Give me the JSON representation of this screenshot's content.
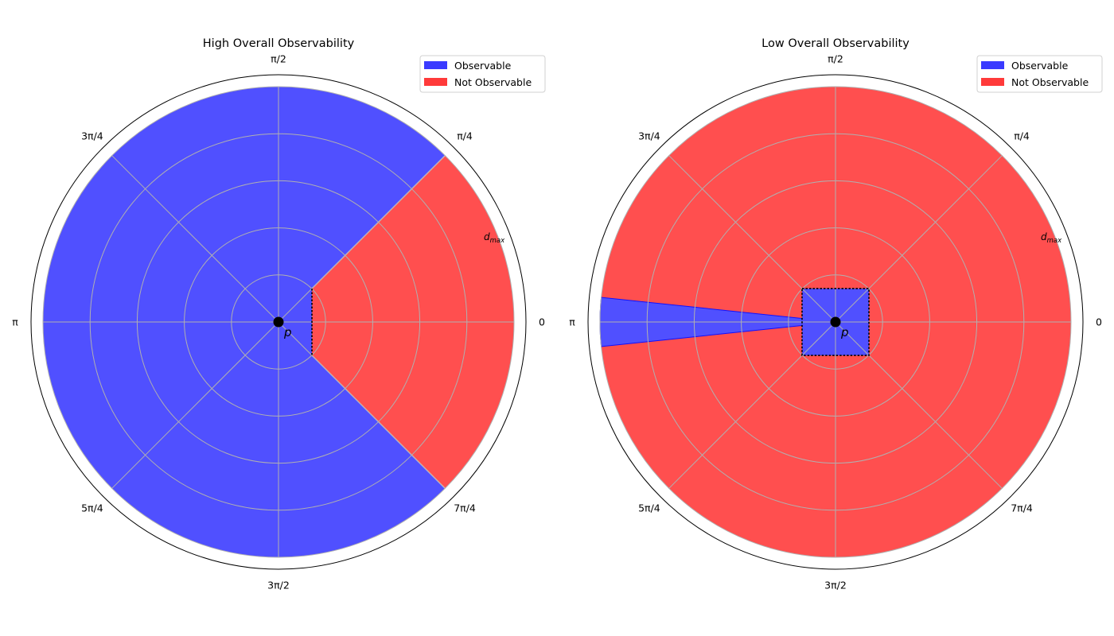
{
  "chart_data": [
    {
      "type": "polar",
      "title": "High Overall Observability",
      "angle_ticks": [
        "0",
        "π/4",
        "π/2",
        "3π/4",
        "π",
        "5π/4",
        "3π/2",
        "7π/4"
      ],
      "radial_label": "d_max",
      "radial_label_text": {
        "base": "d",
        "sub": "max"
      },
      "center_label": "p",
      "rlim": [
        0,
        1
      ],
      "radial_grid": [
        0.2,
        0.4,
        0.6,
        0.8,
        1.0
      ],
      "grid": true,
      "legend": {
        "placement": "top-right",
        "entries": [
          {
            "label": "Observable",
            "color": "#3a3aff"
          },
          {
            "label": "Not Observable",
            "color": "#ff3a3a"
          }
        ]
      },
      "regions": [
        {
          "series": "Observable",
          "start_deg": 45,
          "end_deg": 315,
          "r": 1.0
        },
        {
          "series": "Not Observable",
          "start_deg": -45,
          "end_deg": 45,
          "r": 1.0,
          "inner_edge_x": 0.142
        }
      ],
      "obstacle": {
        "shape": "dashed edge",
        "x": 0.142,
        "y_range": [
          -0.142,
          0.142
        ]
      }
    },
    {
      "type": "polar",
      "title": "Low Overall Observability",
      "angle_ticks": [
        "0",
        "π/4",
        "π/2",
        "3π/4",
        "π",
        "5π/4",
        "3π/2",
        "7π/4"
      ],
      "radial_label": "d_max",
      "radial_label_text": {
        "base": "d",
        "sub": "max"
      },
      "center_label": "p",
      "rlim": [
        0,
        1
      ],
      "radial_grid": [
        0.2,
        0.4,
        0.6,
        0.8,
        1.0
      ],
      "grid": true,
      "legend": {
        "placement": "top-right",
        "entries": [
          {
            "label": "Observable",
            "color": "#3a3aff"
          },
          {
            "label": "Not Observable",
            "color": "#ff3a3a"
          }
        ]
      },
      "regions": [
        {
          "series": "Not Observable",
          "start_deg": 0,
          "end_deg": 360,
          "r": 1.0
        },
        {
          "series": "Observable",
          "shape": "box",
          "half_width": 0.142
        },
        {
          "series": "Observable",
          "start_deg": 174,
          "end_deg": 186,
          "r": 1.0
        }
      ],
      "obstacle": {
        "shape": "dashed square",
        "half_width": 0.142
      }
    }
  ],
  "colors": {
    "observable": "#5050ff",
    "not_observable": "#ff4f4f",
    "grid": "#b0b0b0"
  }
}
